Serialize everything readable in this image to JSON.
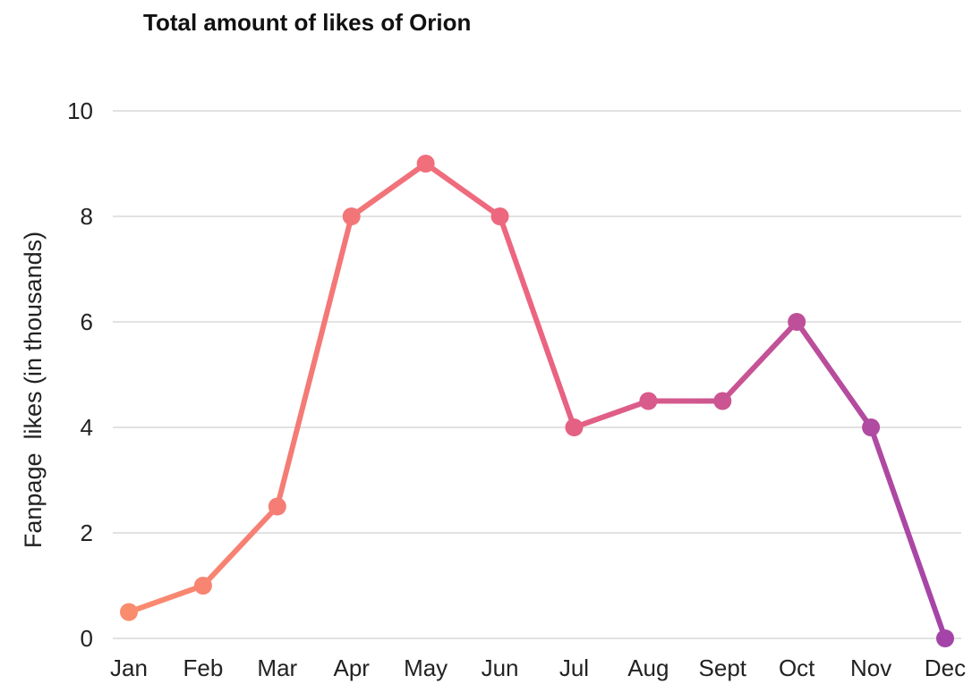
{
  "chart_data": {
    "type": "line",
    "title": "Total amount of likes of Orion",
    "xlabel": "",
    "ylabel": "Fanpage  likes (in thousands)",
    "categories": [
      "Jan",
      "Feb",
      "Mar",
      "Apr",
      "May",
      "Jun",
      "Jul",
      "Aug",
      "Sept",
      "Oct",
      "Nov",
      "Dec"
    ],
    "series": [
      {
        "values": [
          0.5,
          1,
          2.5,
          8,
          9,
          8,
          4,
          4.5,
          4.5,
          6,
          4,
          0
        ]
      }
    ],
    "ylim": [
      0,
      10
    ],
    "yticks": [
      0,
      2,
      4,
      6,
      8,
      10
    ],
    "grid": true,
    "colors": {
      "gradient_start": "#FA8C6E",
      "gradient_mid": "#EC6480",
      "gradient_end": "#A444A8",
      "grid": "#D9D9D9"
    }
  }
}
